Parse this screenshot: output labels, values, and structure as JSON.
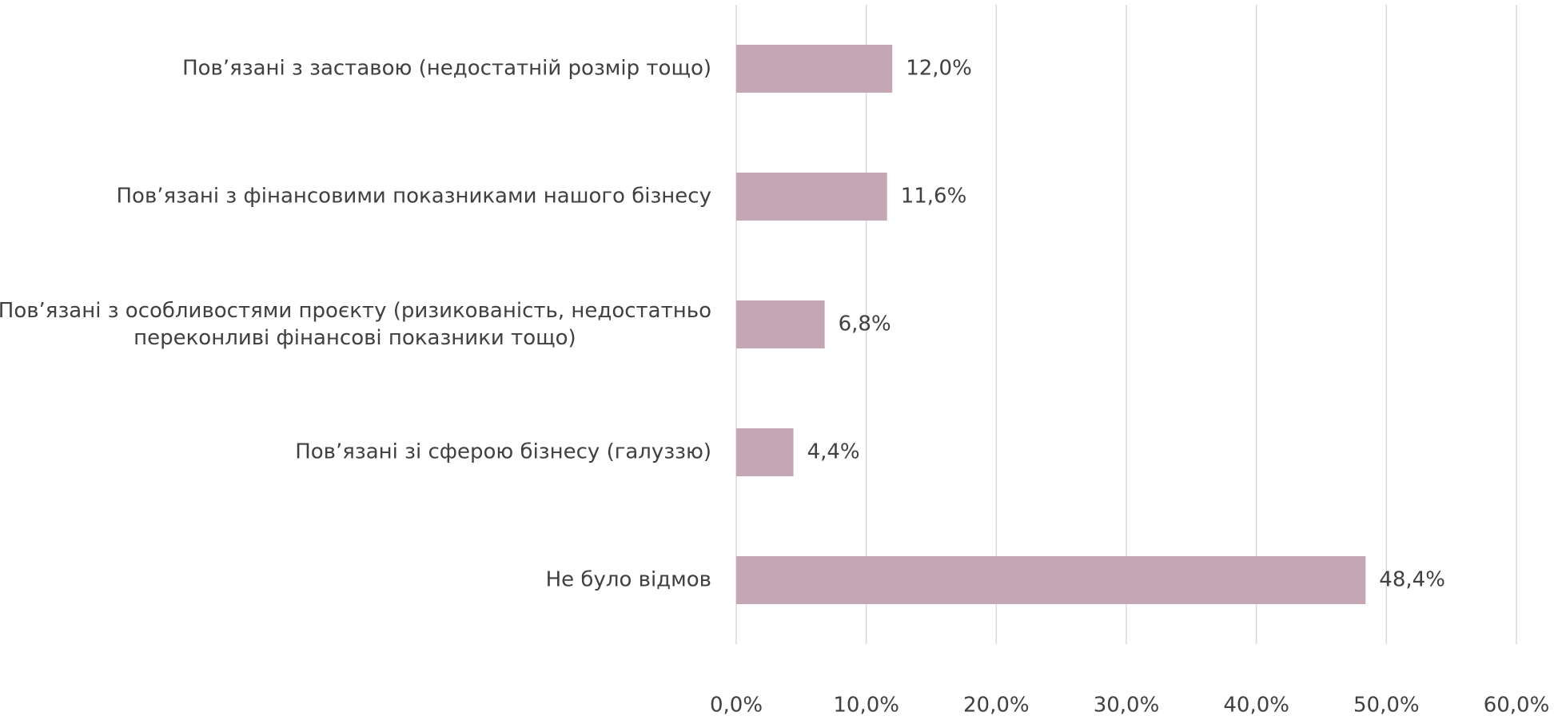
{
  "chart_data": {
    "type": "barh",
    "categories": [
      "Пов’язані з заставою (недостатній розмір тощо)",
      "Пов’язані з фінансовими показниками нашого бізнесу",
      "Пов’язані з особливостями проєкту (ризикованість, недостатньо\nпереконливі фінансові показники тощо)",
      "Пов’язані зі сферою бізнесу (галуззю)",
      "Не було відмов"
    ],
    "values": [
      12.0,
      11.6,
      6.8,
      4.4,
      48.4
    ],
    "value_labels": [
      "12,0%",
      "11,6%",
      "6,8%",
      "4,4%",
      "48,4%"
    ],
    "color": "#c4a6b4",
    "xlim": [
      0,
      60
    ],
    "xticks": [
      {
        "value": 0,
        "label": "0,0%"
      },
      {
        "value": 10,
        "label": "10,0%"
      },
      {
        "value": 20,
        "label": "20,0%"
      },
      {
        "value": 30,
        "label": "30,0%"
      },
      {
        "value": 40,
        "label": "40,0%"
      },
      {
        "value": 50,
        "label": "50,0%"
      },
      {
        "value": 60,
        "label": "60,0%"
      }
    ],
    "grid": true
  }
}
